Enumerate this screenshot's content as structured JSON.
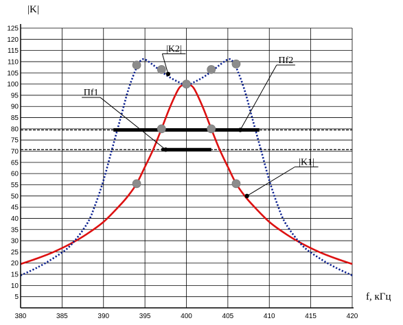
{
  "chart_data": {
    "type": "line",
    "xlabel": "f, кГц",
    "ylabel": "|K|",
    "xlim": [
      380,
      420
    ],
    "ylim": [
      0,
      125
    ],
    "xticks": [
      380,
      385,
      390,
      395,
      400,
      405,
      410,
      415,
      420
    ],
    "yticks": [
      5,
      10,
      15,
      20,
      25,
      30,
      35,
      40,
      45,
      50,
      55,
      60,
      65,
      70,
      75,
      80,
      85,
      90,
      95,
      100,
      105,
      110,
      115,
      120,
      125
    ],
    "grid": true,
    "series": [
      {
        "name": "|K1|",
        "style": "solid",
        "color": "#dd1111",
        "x": [
          380,
          382,
          384,
          386,
          388,
          390,
          392,
          393,
          394,
          395,
          396,
          397,
          398,
          399,
          399.5,
          400,
          400.5,
          401,
          402,
          403,
          404,
          405,
          406,
          407,
          408,
          410,
          412,
          414,
          416,
          418,
          420
        ],
        "y": [
          19.6,
          22.1,
          25.0,
          28.6,
          33.0,
          38.4,
          45.9,
          50.2,
          55.5,
          63.0,
          70.8,
          80.0,
          89.5,
          97.5,
          99.5,
          100,
          99.5,
          97.5,
          89.5,
          80.0,
          70.8,
          63.0,
          55.5,
          50.2,
          45.9,
          38.4,
          33.0,
          28.6,
          25.0,
          22.1,
          19.6
        ]
      },
      {
        "name": "|K2|",
        "style": "dotted",
        "color": "#0a1f8f",
        "x": [
          380,
          382,
          384,
          386,
          388,
          389,
          390,
          391,
          392,
          393,
          394,
          394.5,
          395,
          396,
          397,
          398,
          399,
          400,
          401,
          402,
          403,
          404,
          405,
          405.5,
          406,
          407,
          408,
          409,
          410,
          411,
          412,
          414,
          416,
          418,
          420
        ],
        "y": [
          14.5,
          18.0,
          22.3,
          27.8,
          37.5,
          46.0,
          57.0,
          70.5,
          84.0,
          97.5,
          107.5,
          110.5,
          111.0,
          108.5,
          105.5,
          103.0,
          101.0,
          99.5,
          101.0,
          103.0,
          105.5,
          108.5,
          111.0,
          110.5,
          107.5,
          97.5,
          84.0,
          70.5,
          57.0,
          46.0,
          37.5,
          27.8,
          22.3,
          18.0,
          14.5
        ]
      }
    ],
    "reference_lines": [
      {
        "y": 70.7,
        "style": "dashed"
      },
      {
        "y": 79.5,
        "style": "dashed"
      }
    ],
    "bandwidth_bars": [
      {
        "name": "Пf1",
        "y": 70.7,
        "x1": 397.0,
        "x2": 403.0
      },
      {
        "name": "Пf2",
        "y": 79.5,
        "x1": 391.2,
        "x2": 408.8
      }
    ],
    "markers": [
      {
        "x": 394,
        "y": 55.5
      },
      {
        "x": 397,
        "y": 80.0
      },
      {
        "x": 400,
        "y": 100
      },
      {
        "x": 403,
        "y": 80.0
      },
      {
        "x": 406,
        "y": 55.5
      },
      {
        "x": 394,
        "y": 108.5
      },
      {
        "x": 397,
        "y": 106.5
      },
      {
        "x": 403,
        "y": 106.5
      },
      {
        "x": 406,
        "y": 109.0
      }
    ],
    "annotations": [
      {
        "label": "|K2|",
        "point": [
          397.8,
          104.5
        ],
        "text_pos": [
          398.5,
          113.5
        ]
      },
      {
        "label": "Пf2",
        "point": [
          406.5,
          79.5
        ],
        "text_pos": [
          412.0,
          108.5
        ]
      },
      {
        "label": "Пf1",
        "point": [
          397.5,
          70.7
        ],
        "text_pos": [
          388.5,
          94.0
        ]
      },
      {
        "label": "|K1|",
        "point": [
          407.3,
          50.0
        ],
        "text_pos": [
          414.5,
          63.0
        ]
      }
    ]
  }
}
